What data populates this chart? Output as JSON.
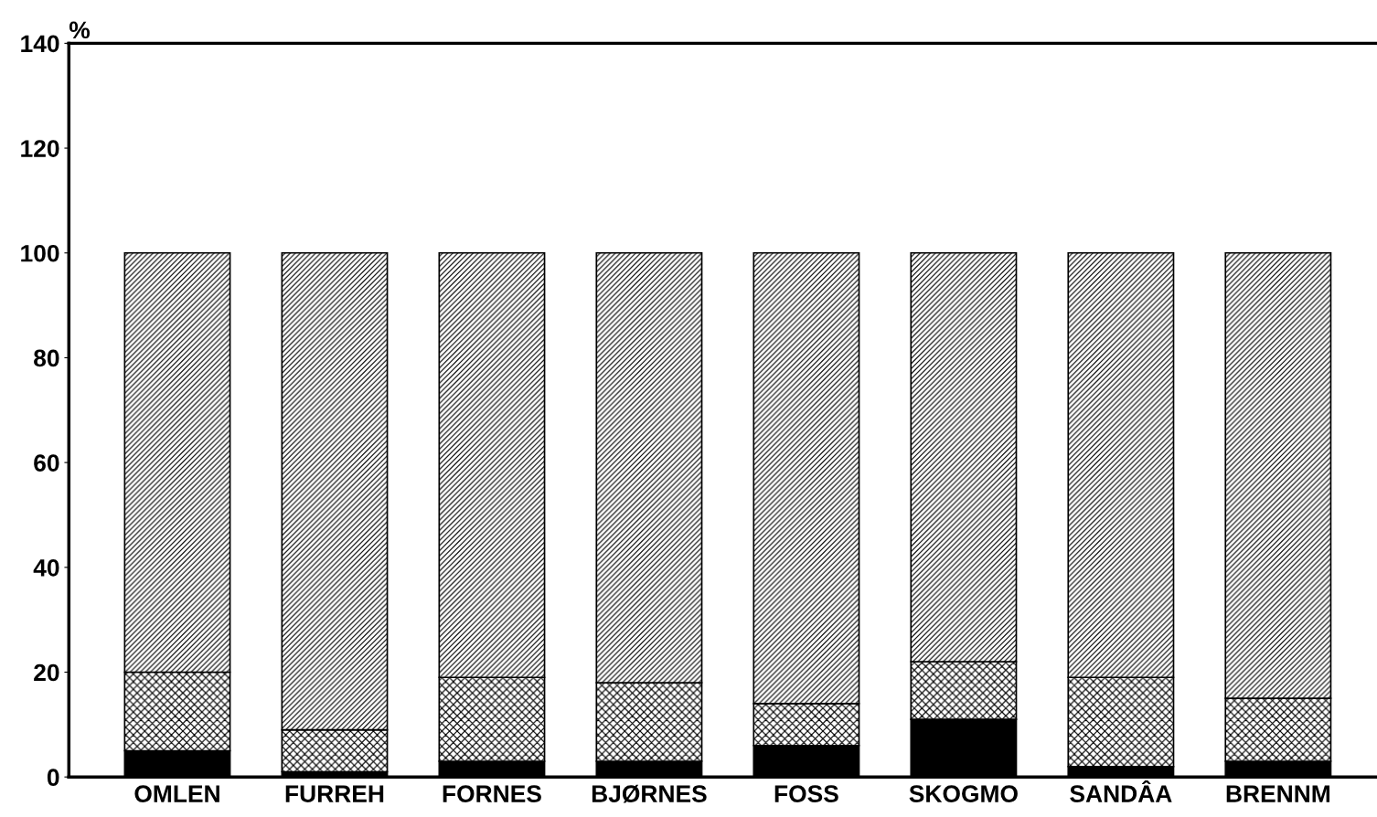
{
  "chart_data": {
    "type": "bar",
    "stacked": true,
    "ylabel": "%",
    "categories": [
      "OMLEN",
      "FURREH",
      "FORNES",
      "BJØRNES",
      "FOSS",
      "SKOGMO",
      "SANDÂA",
      "BRENNM"
    ],
    "series": [
      {
        "color": "#000000",
        "values": [
          5,
          1,
          3,
          3,
          6,
          11,
          2,
          3
        ]
      },
      {
        "color": "#000000",
        "values": [
          15,
          8,
          16,
          15,
          8,
          11,
          17,
          12
        ]
      },
      {
        "color": "#000000",
        "values": [
          80,
          91,
          81,
          82,
          86,
          78,
          81,
          85
        ]
      }
    ],
    "ylim": [
      0,
      140
    ],
    "yticks": [
      0,
      20,
      40,
      60,
      80,
      100,
      120,
      140
    ],
    "grid": false,
    "legend": false
  }
}
